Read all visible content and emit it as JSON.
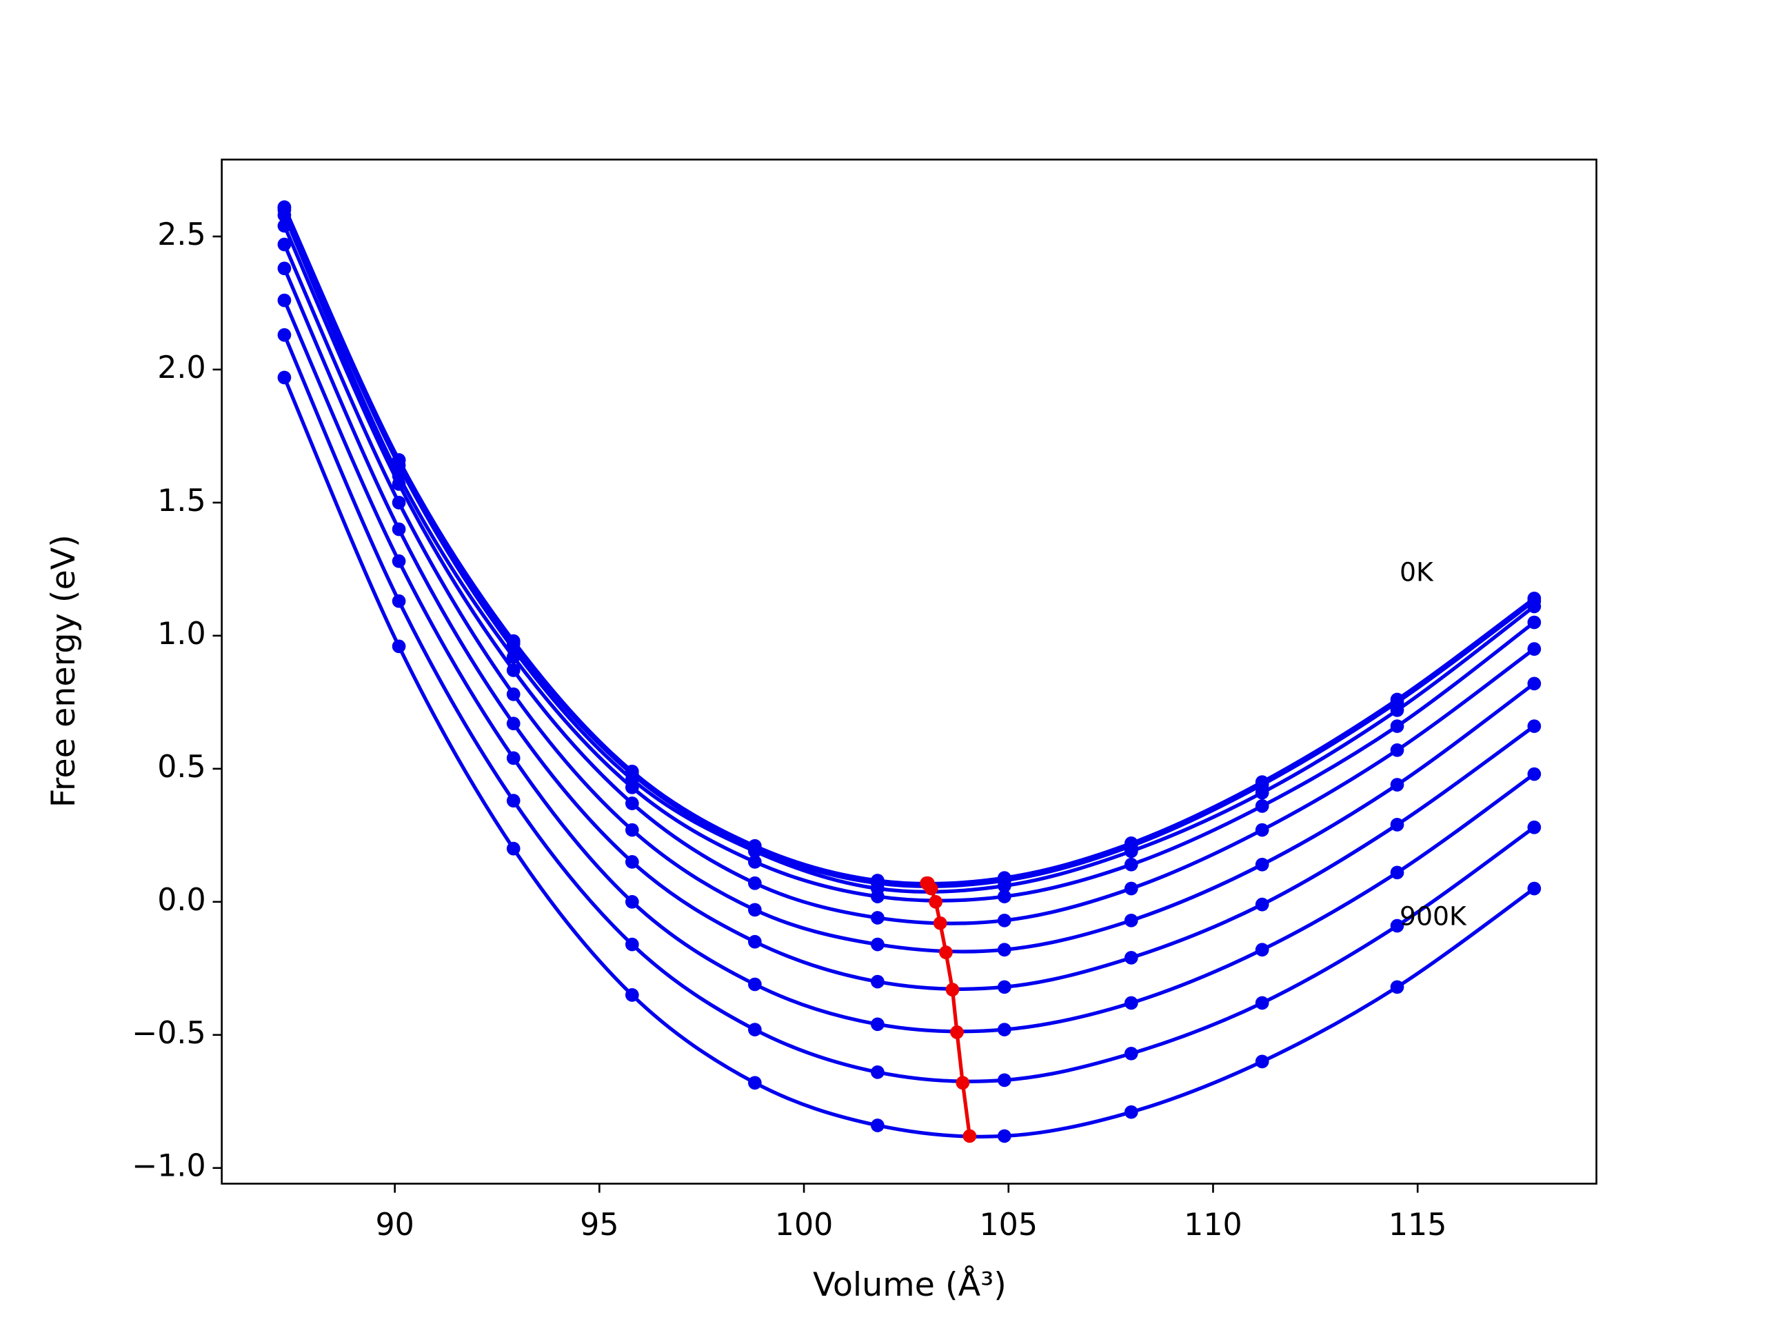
{
  "chart_data": {
    "type": "line",
    "xlabel": "Volume (Å³)",
    "ylabel": "Free energy (eV)",
    "x": [
      87.3,
      90.1,
      92.9,
      95.8,
      98.8,
      101.8,
      104.9,
      108.0,
      111.2,
      114.5,
      117.85
    ],
    "series": [
      {
        "color": "#0000ee",
        "values": [
          2.61,
          1.66,
          0.98,
          0.49,
          0.21,
          0.08,
          0.09,
          0.22,
          0.45,
          0.76,
          1.14
        ]
      },
      {
        "color": "#0000ee",
        "values": [
          2.61,
          1.66,
          0.97,
          0.48,
          0.2,
          0.07,
          0.08,
          0.21,
          0.44,
          0.75,
          1.13
        ]
      },
      {
        "color": "#0000ee",
        "values": [
          2.6,
          1.64,
          0.95,
          0.46,
          0.19,
          0.05,
          0.06,
          0.19,
          0.41,
          0.72,
          1.11
        ]
      },
      {
        "color": "#0000ee",
        "values": [
          2.58,
          1.6,
          0.92,
          0.43,
          0.15,
          0.02,
          0.02,
          0.14,
          0.36,
          0.66,
          1.05
        ]
      },
      {
        "color": "#0000ee",
        "values": [
          2.54,
          1.57,
          0.87,
          0.37,
          0.07,
          -0.06,
          -0.07,
          0.05,
          0.27,
          0.57,
          0.95
        ]
      },
      {
        "color": "#0000ee",
        "values": [
          2.47,
          1.5,
          0.78,
          0.27,
          -0.03,
          -0.16,
          -0.18,
          -0.07,
          0.14,
          0.44,
          0.82
        ]
      },
      {
        "color": "#0000ee",
        "values": [
          2.38,
          1.4,
          0.67,
          0.15,
          -0.15,
          -0.3,
          -0.32,
          -0.21,
          -0.01,
          0.29,
          0.66
        ]
      },
      {
        "color": "#0000ee",
        "values": [
          2.26,
          1.28,
          0.54,
          0.0,
          -0.31,
          -0.46,
          -0.48,
          -0.38,
          -0.18,
          0.11,
          0.48
        ]
      },
      {
        "color": "#0000ee",
        "values": [
          2.13,
          1.13,
          0.38,
          -0.16,
          -0.48,
          -0.64,
          -0.67,
          -0.57,
          -0.38,
          -0.09,
          0.28
        ]
      },
      {
        "color": "#0000ee",
        "values": [
          1.97,
          0.96,
          0.2,
          -0.35,
          -0.68,
          -0.84,
          -0.88,
          -0.79,
          -0.6,
          -0.32,
          0.05
        ]
      }
    ],
    "minima": {
      "color": "#ee0000",
      "x": [
        103.0,
        103.03,
        103.11,
        103.22,
        103.33,
        103.47,
        103.63,
        103.74,
        103.88,
        104.05
      ],
      "values": [
        0.07,
        0.07,
        0.05,
        0.0,
        -0.08,
        -0.19,
        -0.33,
        -0.49,
        -0.68,
        -0.88
      ]
    },
    "annotations": [
      "0K",
      "900K"
    ],
    "xlim": [
      85.77,
      119.37
    ],
    "ylim": [
      -1.059,
      2.789
    ],
    "xticks": [
      90,
      95,
      100,
      105,
      110,
      115
    ],
    "yticks": [
      {
        "value": -1,
        "label": "−1.0"
      },
      {
        "value": -0.5,
        "label": "−0.5"
      },
      {
        "value": 0,
        "label": "0.0"
      },
      0.5,
      {
        "value": 1,
        "label": "1.0"
      },
      1.5,
      {
        "value": 2,
        "label": "2.0"
      },
      2.5
    ],
    "grid": false
  }
}
